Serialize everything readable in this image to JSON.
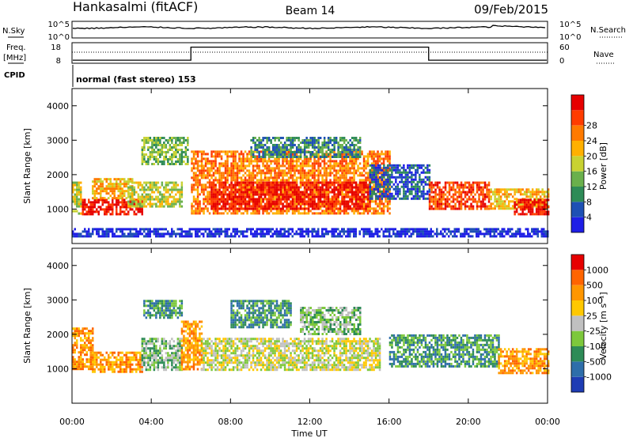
{
  "header": {
    "title": "Hankasalmi (fitACF)",
    "beam": "Beam 14",
    "date": "09/Feb/2015"
  },
  "nsky_panel": {
    "left_label": "N.Sky",
    "right_label": "N.Search",
    "left_ticks": [
      "10^5",
      "10^0"
    ],
    "right_ticks": [
      "10^5",
      "10^0"
    ]
  },
  "freq_panel": {
    "left_label_line1": "Freq.",
    "left_label_line2": "[MHz]",
    "right_label": "Nave",
    "left_ticks": [
      "18",
      "8"
    ],
    "right_ticks": [
      "60",
      "0"
    ],
    "nave_high": 47,
    "nave_low": 9
  },
  "cpid": {
    "label": "CPID",
    "value": "normal (fast stereo) 153"
  },
  "chart_data": [
    {
      "type": "heatmap",
      "title": "Power",
      "ylabel": "Slant Range [km]",
      "xlabel": "",
      "ylim": [
        0,
        4500
      ],
      "y_ticks": [
        1000,
        2000,
        3000,
        4000
      ],
      "x_ticks": [
        "00:00",
        "04:00",
        "08:00",
        "12:00",
        "16:00",
        "20:00",
        "00:00"
      ],
      "x_hours": [
        0,
        4,
        8,
        12,
        16,
        20,
        24
      ],
      "colorbar": {
        "label": "Power [dB]",
        "tick_labels": [
          "4",
          "8",
          "12",
          "16",
          "20",
          "24",
          "28"
        ],
        "colors": [
          "#1e1ee6",
          "#1e50b4",
          "#2e8b57",
          "#6ab04c",
          "#c8d232",
          "#ffb000",
          "#ff7a00",
          "#ff3c00",
          "#e60000"
        ]
      },
      "regions": [
        {
          "t0": 0.0,
          "t1": 0.4,
          "r0": 900,
          "r1": 1800,
          "level": 4
        },
        {
          "t0": 0.5,
          "t1": 3.5,
          "r0": 850,
          "r1": 1300,
          "level": 8
        },
        {
          "t0": 1.0,
          "t1": 3.0,
          "r0": 1300,
          "r1": 1900,
          "level": 5
        },
        {
          "t0": 2.8,
          "t1": 5.5,
          "r0": 1100,
          "r1": 1800,
          "level": 4
        },
        {
          "t0": 3.5,
          "t1": 5.8,
          "r0": 2300,
          "r1": 3100,
          "level": 3
        },
        {
          "t0": 6.0,
          "t1": 16.0,
          "r0": 900,
          "r1": 2700,
          "level": 6
        },
        {
          "t0": 7.0,
          "t1": 15.0,
          "r0": 1000,
          "r1": 1800,
          "level": 8
        },
        {
          "t0": 9.0,
          "t1": 14.5,
          "r0": 2500,
          "r1": 3100,
          "level": 2
        },
        {
          "t0": 15.0,
          "t1": 18.0,
          "r0": 1300,
          "r1": 2300,
          "level": 1
        },
        {
          "t0": 18.0,
          "t1": 21.0,
          "r0": 1000,
          "r1": 1800,
          "level": 7
        },
        {
          "t0": 21.0,
          "t1": 24.0,
          "r0": 1000,
          "r1": 1600,
          "level": 5
        },
        {
          "t0": 22.3,
          "t1": 24.0,
          "r0": 850,
          "r1": 1300,
          "level": 8
        },
        {
          "t0": 0.0,
          "t1": 24.0,
          "r0": 180,
          "r1": 450,
          "level": 0
        }
      ]
    },
    {
      "type": "heatmap",
      "title": "Velocity",
      "ylabel": "Slant Range [km]",
      "xlabel": "Time UT",
      "ylim": [
        0,
        4500
      ],
      "y_ticks": [
        1000,
        2000,
        3000,
        4000
      ],
      "x_ticks": [
        "00:00",
        "04:00",
        "08:00",
        "12:00",
        "16:00",
        "20:00",
        "00:00"
      ],
      "x_hours": [
        0,
        4,
        8,
        12,
        16,
        20,
        24
      ],
      "colorbar": {
        "label": "Velocity [m s⁻¹]",
        "tick_labels": [
          "1000",
          "500",
          "100",
          "25",
          "-25",
          "-100",
          "-500",
          "-1000"
        ],
        "colors": [
          "#1e3cb4",
          "#2e6eaa",
          "#2e8b57",
          "#7dc83c",
          "#c0c0c0",
          "#ffc800",
          "#ff9600",
          "#ff6400",
          "#e60000"
        ]
      },
      "regions": [
        {
          "t0": 0.0,
          "t1": 1.0,
          "r0": 1000,
          "r1": 2200,
          "level": 6
        },
        {
          "t0": 1.0,
          "t1": 3.5,
          "r0": 900,
          "r1": 1500,
          "level": 6
        },
        {
          "t0": 3.5,
          "t1": 5.5,
          "r0": 1000,
          "r1": 1900,
          "level": 3
        },
        {
          "t0": 3.6,
          "t1": 5.5,
          "r0": 2500,
          "r1": 3000,
          "level": 2
        },
        {
          "t0": 5.5,
          "t1": 6.5,
          "r0": 1000,
          "r1": 2400,
          "level": 6
        },
        {
          "t0": 6.5,
          "t1": 15.5,
          "r0": 1000,
          "r1": 1900,
          "level": 4
        },
        {
          "t0": 8.0,
          "t1": 11.0,
          "r0": 2200,
          "r1": 3000,
          "level": 2
        },
        {
          "t0": 11.5,
          "t1": 14.5,
          "r0": 2000,
          "r1": 2800,
          "level": 3
        },
        {
          "t0": 16.0,
          "t1": 21.5,
          "r0": 1100,
          "r1": 2000,
          "level": 2
        },
        {
          "t0": 21.5,
          "t1": 24.0,
          "r0": 900,
          "r1": 1600,
          "level": 6
        }
      ]
    }
  ]
}
